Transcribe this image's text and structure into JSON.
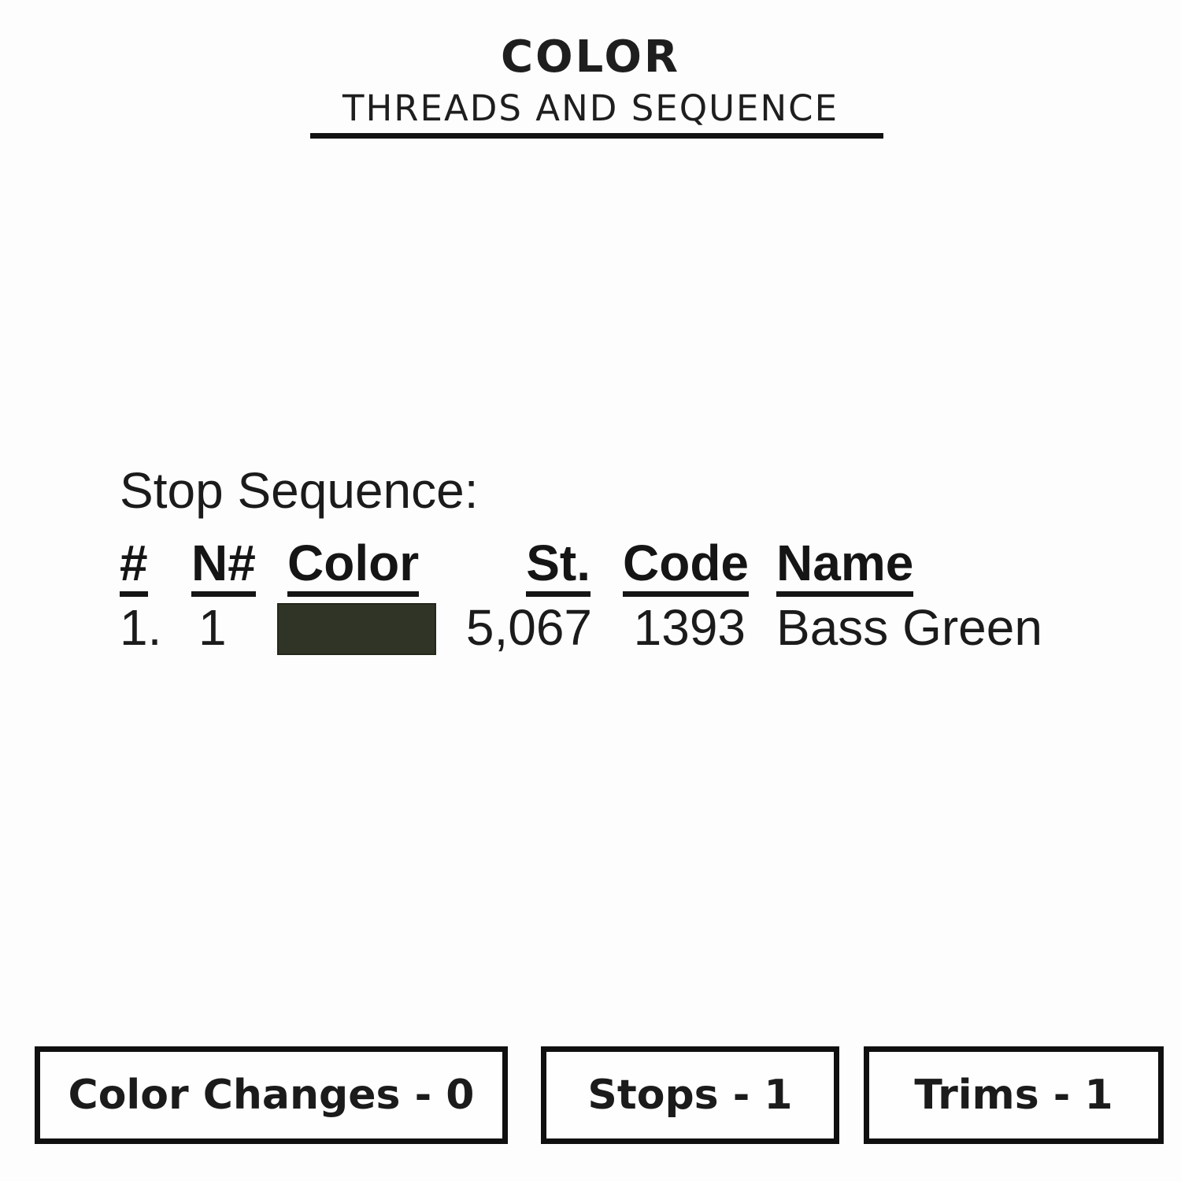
{
  "header": {
    "title": "COLOR",
    "subtitle": "THREADS AND SEQUENCE"
  },
  "stop_sequence": {
    "label": "Stop Sequence:",
    "columns": [
      "#",
      "N#",
      "Color",
      "St.",
      "Code",
      "Name"
    ],
    "rows": [
      {
        "num": "1.",
        "needle": "1",
        "swatch_hex": "#2f3426",
        "stitches": "5,067",
        "code": "1393",
        "name": "Bass Green"
      }
    ]
  },
  "summary": {
    "color_changes": "Color Changes - 0",
    "stops": "Stops - 1",
    "trims": "Trims - 1"
  },
  "colors": {
    "background": "#fdfdfd",
    "ink": "#151515",
    "thread_swatch": "#2f3426"
  }
}
